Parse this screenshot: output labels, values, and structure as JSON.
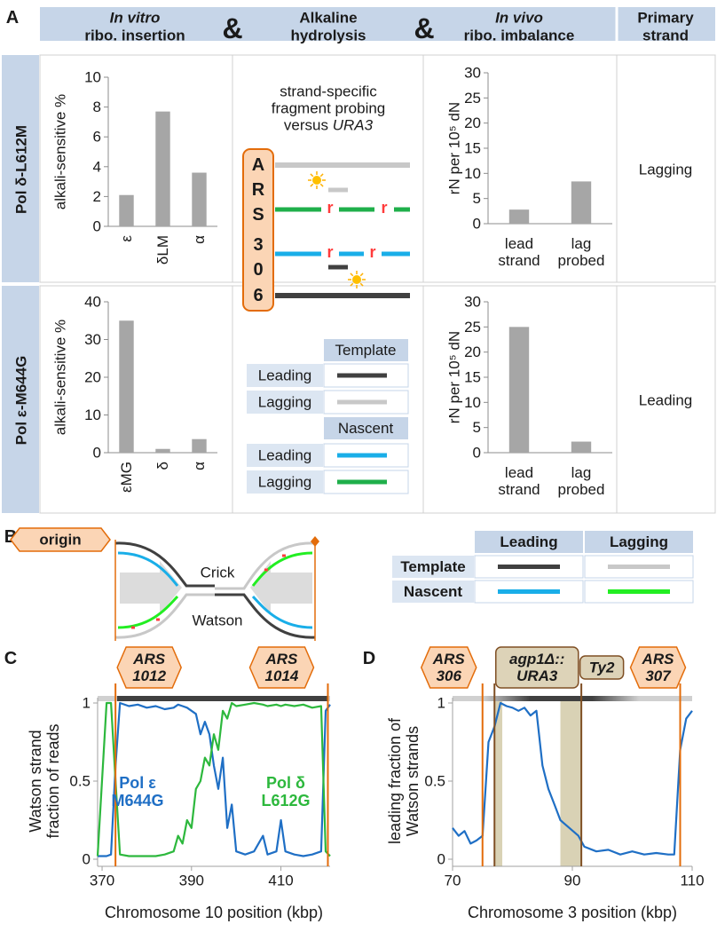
{
  "panel_labels": {
    "a": "A",
    "b": "B",
    "c": "C",
    "d": "D"
  },
  "panel_a": {
    "header": {
      "in_vitro": "In vitro",
      "insertion": "ribo. insertion",
      "ampersand": "&",
      "alkaline": "Alkaline",
      "hydrolysis": "hydrolysis",
      "in_vivo": "In vivo",
      "imbalance": "ribo. imbalance",
      "primary": "Primary",
      "strand": "strand"
    },
    "rows": [
      {
        "label": "Pol δ-L612M",
        "primary_strand": "Lagging"
      },
      {
        "label": "Pol ε-M644G",
        "primary_strand": "Leading"
      }
    ],
    "diagram": {
      "caption": "strand-specific\nfragment probing\nversus",
      "gene": "URA3",
      "origin": [
        "A",
        "R",
        "S",
        "3",
        "0",
        "6"
      ],
      "ribonucleotide": "r"
    },
    "key": {
      "template": "Template",
      "nascent": "Nascent",
      "leading": "Leading",
      "lagging": "Lagging",
      "colors": {
        "template_leading": "#404040",
        "template_lagging": "#c8c8c8",
        "nascent_leading": "#19aee8",
        "nascent_lagging": "#1faf4b"
      }
    }
  },
  "panel_b": {
    "origin": "origin",
    "crick": "Crick",
    "watson": "Watson",
    "key": {
      "leading": "Leading",
      "lagging": "Lagging",
      "template": "Template",
      "nascent": "Nascent",
      "colors": {
        "template_leading": "#404040",
        "template_lagging": "#c8c8c8",
        "nascent_leading": "#19aee8",
        "nascent_lagging": "#22ee22"
      }
    }
  },
  "chart_data": [
    {
      "type": "bar",
      "ylabel": "alkali-sensitive %",
      "categories": [
        "ε",
        "δLM",
        "α"
      ],
      "values": [
        2.1,
        7.7,
        3.6
      ],
      "ylim": [
        0,
        10
      ],
      "yticks": [
        0,
        2,
        4,
        6,
        8,
        10
      ],
      "color": "#a6a6a6"
    },
    {
      "type": "bar",
      "ylabel": "rN per 10⁵ dN",
      "categories": [
        "lead\nstrand",
        "lag\nprobed"
      ],
      "values": [
        2.8,
        8.4
      ],
      "ylim": [
        0,
        30
      ],
      "yticks": [
        0,
        5,
        10,
        15,
        20,
        25,
        30
      ],
      "color": "#a6a6a6"
    },
    {
      "type": "bar",
      "ylabel": "alkali-sensitive %",
      "categories": [
        "εMG",
        "δ",
        "α"
      ],
      "values": [
        35,
        1,
        3.6
      ],
      "ylim": [
        0,
        40
      ],
      "yticks": [
        0,
        10,
        20,
        30,
        40
      ],
      "color": "#a6a6a6"
    },
    {
      "type": "bar",
      "ylabel": "rN per 10⁵ dN",
      "categories": [
        "lead\nstrand",
        "lag\nprobed"
      ],
      "values": [
        25,
        2.2
      ],
      "ylim": [
        0,
        30
      ],
      "yticks": [
        0,
        5,
        10,
        15,
        20,
        25,
        30
      ],
      "color": "#a6a6a6"
    },
    {
      "type": "line",
      "xlabel": "Chromosome 10 position (kbp)",
      "ylabel": "Watson strand\nfraction of reads",
      "x": [
        369,
        371,
        372,
        373,
        374,
        376,
        378,
        380,
        382,
        384,
        386,
        387,
        388,
        389,
        390,
        391,
        392,
        393,
        394,
        395,
        396,
        397,
        398,
        399,
        400,
        402,
        404,
        406,
        407,
        409,
        410,
        411,
        413,
        415,
        417,
        419,
        420,
        421
      ],
      "series": [
        {
          "name": "Pol ε\nM644G",
          "color": "#1f6fc5",
          "values": [
            0.02,
            0.02,
            0.03,
            0.6,
            1,
            0.98,
            0.99,
            0.97,
            0.98,
            0.96,
            0.97,
            0.99,
            0.98,
            0.97,
            0.95,
            0.93,
            0.8,
            0.88,
            0.8,
            0.6,
            0.45,
            0.65,
            0.2,
            0.35,
            0.05,
            0.03,
            0.05,
            0.15,
            0.03,
            0.05,
            0.25,
            0.05,
            0.03,
            0.02,
            0.03,
            0.05,
            0.95,
            0.99
          ]
        },
        {
          "name": "Pol δ\nL612G",
          "color": "#2db83d",
          "values": [
            0.02,
            1,
            1,
            0.5,
            0.03,
            0.02,
            0.02,
            0.02,
            0.02,
            0.03,
            0.05,
            0.15,
            0.1,
            0.25,
            0.2,
            0.45,
            0.5,
            0.65,
            0.6,
            0.8,
            0.7,
            0.95,
            0.9,
            1,
            0.98,
            0.99,
            1,
            0.99,
            0.98,
            0.99,
            0.98,
            0.99,
            0.98,
            0.99,
            0.97,
            0.98,
            0.05,
            0.02
          ]
        }
      ],
      "xlim": [
        369,
        421
      ],
      "xticks": [
        370,
        390,
        410
      ],
      "ylim": [
        0,
        1
      ],
      "yticks": [
        0,
        0.5,
        1
      ],
      "annotations": [
        {
          "label": "ARS\n1012",
          "x": 373,
          "shape": "hexagon",
          "color": "#e36c0a",
          "fill": "#fbd5b5"
        },
        {
          "label": "ARS\n1014",
          "x": 420.5,
          "shape": "hexagon",
          "color": "#e36c0a",
          "fill": "#fbd5b5"
        }
      ]
    },
    {
      "type": "line",
      "xlabel": "Chromosome 3 position (kbp)",
      "ylabel": "leading fraction of\nWatson strands",
      "x": [
        70,
        71,
        72,
        73,
        74,
        75,
        76,
        77,
        78,
        79,
        80,
        81,
        82,
        83,
        84,
        85,
        86,
        87,
        88,
        91,
        92,
        94,
        96,
        98,
        100,
        102,
        104,
        106,
        107,
        108,
        109,
        110
      ],
      "series": [
        {
          "color": "#1f6fc5",
          "values": [
            0.2,
            0.15,
            0.18,
            0.1,
            0.12,
            0.15,
            0.75,
            0.85,
            1,
            0.98,
            0.97,
            0.95,
            0.97,
            0.92,
            0.95,
            0.6,
            0.45,
            0.35,
            0.25,
            0.15,
            0.08,
            0.05,
            0.06,
            0.03,
            0.05,
            0.03,
            0.04,
            0.03,
            0.03,
            0.7,
            0.9,
            0.95
          ]
        }
      ],
      "xlim": [
        70,
        110
      ],
      "xticks": [
        70,
        90,
        110
      ],
      "ylim": [
        0,
        1
      ],
      "yticks": [
        0,
        0.5,
        1
      ],
      "shaded_regions": [
        [
          77,
          78.3
        ],
        [
          88,
          91.5
        ]
      ],
      "shade_color": "#d9d2b5",
      "annotations": [
        {
          "label": "ARS\n306",
          "x": 75,
          "shape": "hexagon",
          "color": "#e36c0a",
          "fill": "#fbd5b5"
        },
        {
          "label": "agp1Δ::\nURA3",
          "x": 77,
          "shape": "box",
          "color": "#7f4f24",
          "fill": "#ddd3b8"
        },
        {
          "label": "Ty2",
          "x": 91.5,
          "shape": "box",
          "color": "#7f4f24",
          "fill": "#ddd3b8"
        },
        {
          "label": "ARS\n307",
          "x": 108,
          "shape": "hexagon",
          "color": "#e36c0a",
          "fill": "#fbd5b5"
        }
      ]
    }
  ]
}
